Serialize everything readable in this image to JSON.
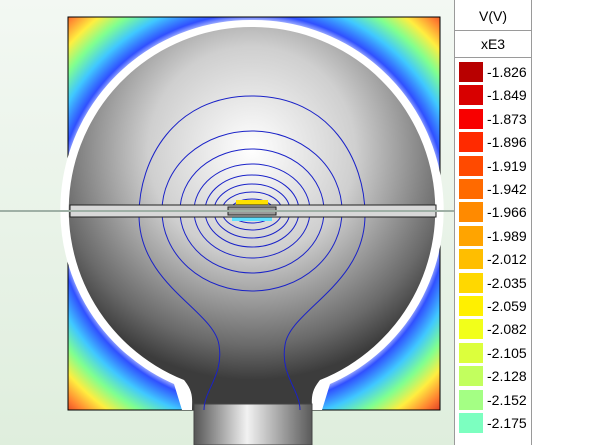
{
  "legend": {
    "title": "V(V)",
    "scale": "xE3",
    "entries": [
      {
        "label": "-1.826",
        "color": "#b80000"
      },
      {
        "label": "-1.849",
        "color": "#d80000"
      },
      {
        "label": "-1.873",
        "color": "#f80000"
      },
      {
        "label": "-1.896",
        "color": "#ff2a00"
      },
      {
        "label": "-1.919",
        "color": "#ff4a00"
      },
      {
        "label": "-1.942",
        "color": "#ff6a00"
      },
      {
        "label": "-1.966",
        "color": "#ff8a00"
      },
      {
        "label": "-1.989",
        "color": "#ffa400"
      },
      {
        "label": "-2.012",
        "color": "#ffbe00"
      },
      {
        "label": "-2.035",
        "color": "#ffd800"
      },
      {
        "label": "-2.059",
        "color": "#fff000"
      },
      {
        "label": "-2.082",
        "color": "#f2ff1a"
      },
      {
        "label": "-2.105",
        "color": "#dcff3c"
      },
      {
        "label": "-2.128",
        "color": "#c2ff5e"
      },
      {
        "label": "-2.152",
        "color": "#a4ff84"
      },
      {
        "label": "-2.175",
        "color": "#7cffc0"
      }
    ]
  }
}
